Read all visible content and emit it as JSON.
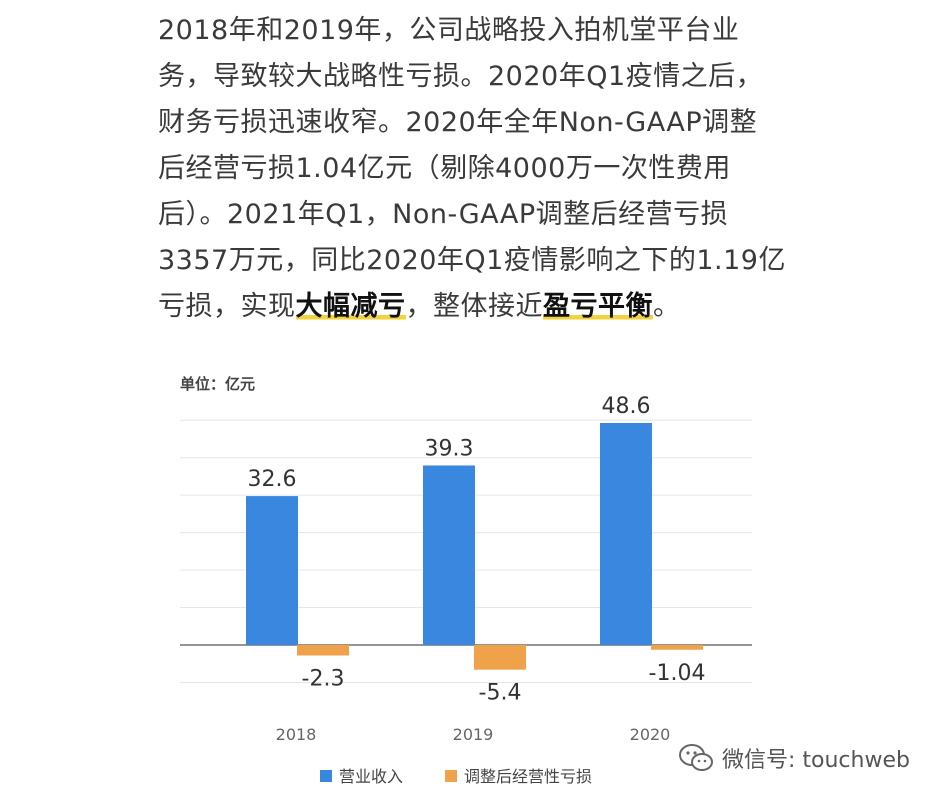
{
  "article": {
    "lines": [
      [
        {
          "t": "2018年和2019年，公司战略投入拍机堂平台业"
        }
      ],
      [
        {
          "t": "务，导致较大战略性亏损。2020年Q1疫情之后，"
        }
      ],
      [
        {
          "t": "财务亏损迅速收窄。2020年全年Non-GAAP调整"
        }
      ],
      [
        {
          "t": "后经营亏损1.04亿元（剔除4000万一次性费用"
        }
      ],
      [
        {
          "t": "后）。2021年Q1，Non-GAAP调整后经营亏损"
        }
      ],
      [
        {
          "t": "3357万元，同比2020年Q1疫情影响之下的1.19亿"
        }
      ],
      [
        {
          "t": "亏损，实现"
        },
        {
          "t": "大幅减亏",
          "hl": true
        },
        {
          "t": "，整体接近"
        },
        {
          "t": "盈亏平衡",
          "hl": true
        },
        {
          "t": "。"
        }
      ]
    ]
  },
  "chart_data": {
    "type": "bar",
    "unit_label": "单位：亿元",
    "categories": [
      "2018",
      "2019",
      "2020"
    ],
    "series": [
      {
        "name": "营业收入",
        "color": "#3a87e0",
        "values": [
          32.6,
          39.3,
          48.6
        ],
        "labels": [
          "32.6",
          "39.3",
          "48.6"
        ]
      },
      {
        "name": "调整后经营性亏损",
        "color": "#f0a24a",
        "values": [
          -2.3,
          -5.4,
          -1.04
        ],
        "labels": [
          "-2.3",
          "-5.4",
          "-1.04"
        ]
      }
    ],
    "ylim": [
      -10,
      50
    ],
    "grid": true,
    "legend": "bottom"
  },
  "watermark": {
    "text": "微信号: touchweb",
    "icon": "wechat-icon"
  }
}
